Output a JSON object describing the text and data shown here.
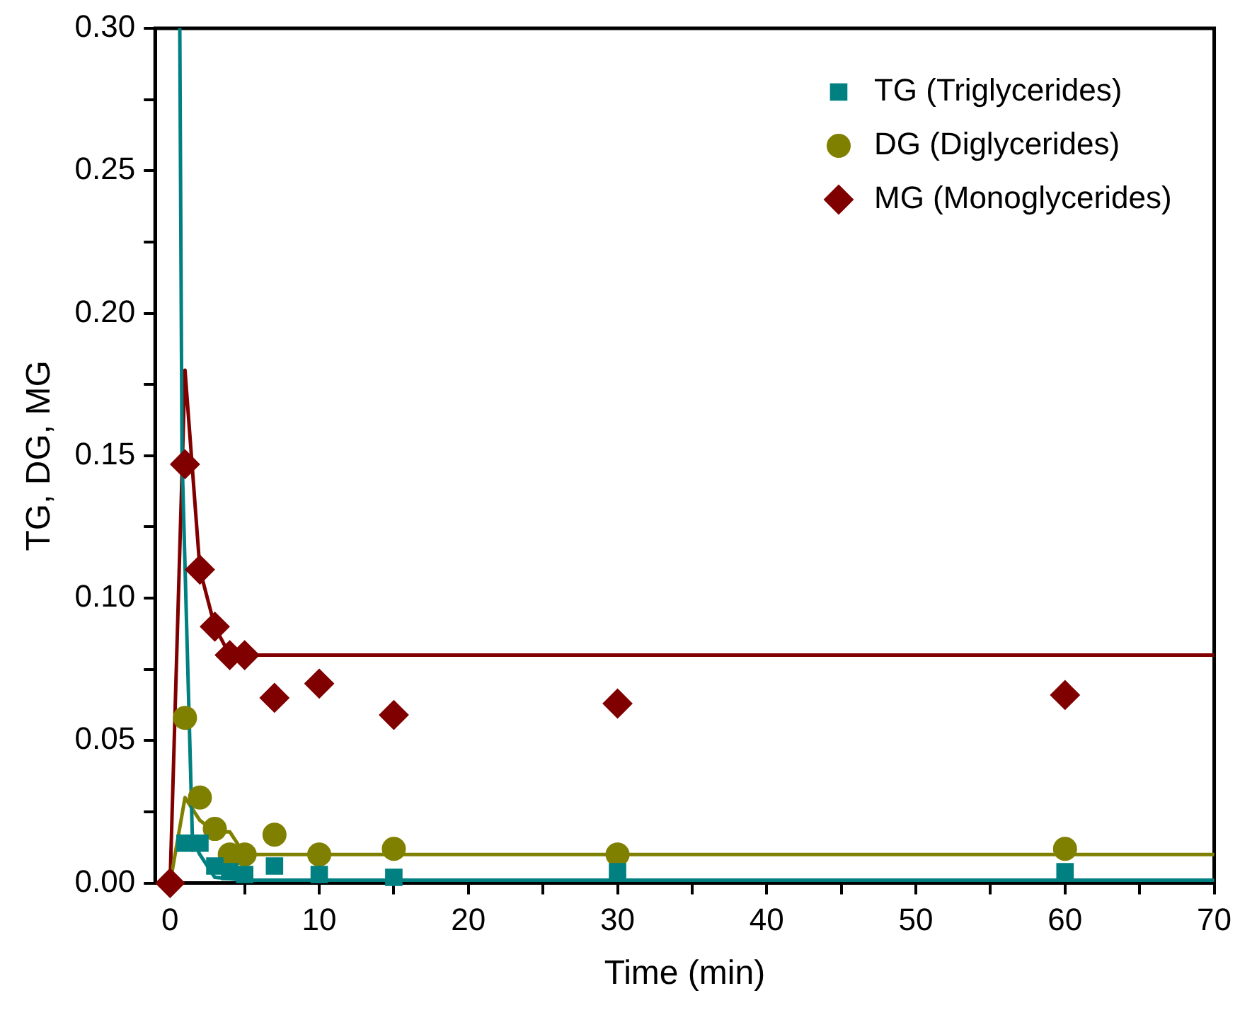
{
  "chart_data": {
    "type": "scatter",
    "xlabel": "Time (min)",
    "ylabel": "TG, DG, MG",
    "xlim": [
      -1,
      70
    ],
    "ylim": [
      0,
      0.3
    ],
    "xticks": [
      0,
      {
        "value": 5,
        "label": null
      },
      10,
      {
        "value": 15,
        "label": null
      },
      20,
      {
        "value": 25,
        "label": null
      },
      30,
      {
        "value": 35,
        "label": null
      },
      40,
      {
        "value": 45,
        "label": null
      },
      50,
      {
        "value": 55,
        "label": null
      },
      60,
      {
        "value": 65,
        "label": null
      },
      70
    ],
    "yticks": [
      {
        "value": 0,
        "label": "0.00"
      },
      {
        "value": 0.025,
        "label": null
      },
      {
        "value": 0.05,
        "label": "0.05"
      },
      {
        "value": 0.075,
        "label": null
      },
      {
        "value": 0.1,
        "label": "0.10"
      },
      {
        "value": 0.125,
        "label": null
      },
      {
        "value": 0.15,
        "label": "0.15"
      },
      {
        "value": 0.175,
        "label": null
      },
      {
        "value": 0.2,
        "label": "0.20"
      },
      {
        "value": 0.225,
        "label": null
      },
      {
        "value": 0.25,
        "label": "0.25"
      },
      {
        "value": 0.275,
        "label": null
      },
      {
        "value": 0.3,
        "label": "0.30"
      }
    ],
    "grid": false,
    "legend": "top right",
    "x": [
      0,
      1,
      2,
      3,
      4,
      5,
      7,
      10,
      15,
      30,
      60
    ],
    "series": [
      {
        "type": "scatter",
        "name": "TG (Triglycerides)",
        "color": "#008080",
        "marker": "square",
        "values": [
          null,
          0.014,
          0.014,
          0.006,
          0.004,
          0.003,
          0.006,
          0.003,
          0.002,
          0.004,
          0.004
        ]
      },
      {
        "type": "scatter",
        "name": "DG (Diglycerides)",
        "color": "#808000",
        "marker": "circle",
        "values": [
          null,
          0.058,
          0.03,
          0.019,
          0.01,
          0.01,
          0.017,
          0.01,
          0.012,
          0.01,
          0.012
        ]
      },
      {
        "type": "scatter",
        "name": "MG (Monoglycerides)",
        "color": "#800000",
        "marker": "diamond",
        "values": [
          0,
          0.147,
          0.11,
          0.09,
          0.08,
          0.08,
          0.065,
          0.07,
          0.059,
          0.063,
          0.066
        ]
      },
      {
        "type": "line",
        "color": "#008080",
        "marker": "none",
        "line_style": "solid",
        "x": [
          0.65,
          0.8,
          1.5,
          2,
          3,
          5,
          70
        ],
        "values": [
          0.3,
          0.15,
          0.015,
          0.01,
          0.002,
          0.001,
          0.001
        ]
      },
      {
        "type": "line",
        "color": "#808000",
        "marker": "none",
        "line_style": "solid",
        "x": [
          0,
          1,
          2,
          3,
          4,
          5,
          70
        ],
        "values": [
          0,
          0.03,
          0.022,
          0.018,
          0.018,
          0.01,
          0.01
        ]
      },
      {
        "type": "line",
        "color": "#800000",
        "marker": "none",
        "line_style": "solid",
        "x": [
          0,
          1,
          2,
          3,
          4,
          5,
          70
        ],
        "values": [
          0,
          0.18,
          0.11,
          0.09,
          0.08,
          0.08,
          0.08
        ]
      }
    ]
  }
}
